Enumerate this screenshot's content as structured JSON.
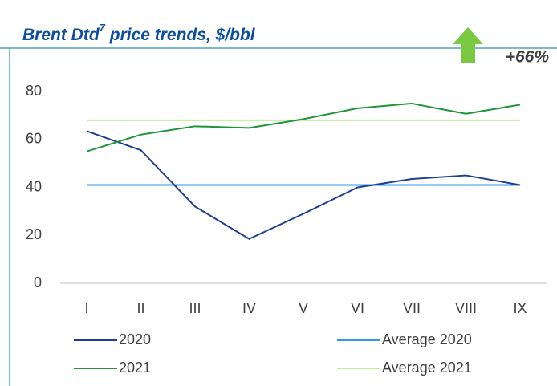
{
  "chart_data": {
    "type": "line",
    "title": {
      "main": "Brent Dtd",
      "sup": "7",
      "rest": " price trends, $/bbl"
    },
    "annotation": "+66%",
    "categories": [
      "I",
      "II",
      "III",
      "IV",
      "V",
      "VI",
      "VII",
      "VIII",
      "IX"
    ],
    "series": [
      {
        "name": "2020",
        "color": "#1f3f94",
        "values": [
          63.5,
          55.5,
          32,
          18.5,
          29,
          40,
          43.5,
          45,
          41
        ]
      },
      {
        "name": "Average 2020",
        "color": "#2e9ae8",
        "values": [
          41,
          41,
          41,
          41,
          41,
          41,
          41,
          41,
          41
        ]
      },
      {
        "name": "2021",
        "color": "#22943c",
        "values": [
          55,
          62,
          65.5,
          64.8,
          68.5,
          73,
          75,
          70.7,
          74.5
        ]
      },
      {
        "name": "Average 2021",
        "color": "#c5ec9b",
        "values": [
          68,
          68,
          68,
          68,
          68,
          68,
          68,
          68,
          68
        ]
      }
    ],
    "ylim": [
      0,
      80
    ],
    "yticks": [
      0,
      20,
      40,
      60,
      80
    ],
    "grid": false
  }
}
